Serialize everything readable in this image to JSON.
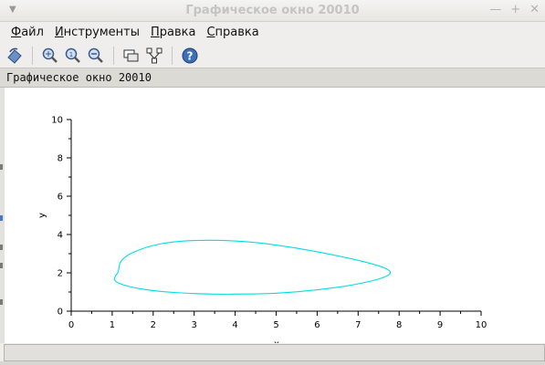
{
  "window": {
    "title": "Графическое окно 20010"
  },
  "menu": {
    "items": [
      {
        "first": "Ф",
        "rest": "айл"
      },
      {
        "first": "И",
        "rest": "нструменты"
      },
      {
        "first": "П",
        "rest": "равка"
      },
      {
        "first": "С",
        "rest": "правка"
      }
    ]
  },
  "toolbar": {
    "icons": [
      "rotate-icon",
      "zoom-area-icon",
      "zoom-reset-icon",
      "zoom-icon",
      "datatip-icon",
      "edit-tree-icon",
      "help-icon"
    ]
  },
  "figure": {
    "title": "Графическое окно 20010"
  },
  "chart_data": {
    "type": "line",
    "xlabel": "x",
    "ylabel": "y",
    "xlim": [
      0,
      10
    ],
    "ylim": [
      0,
      10
    ],
    "xticks": [
      "0",
      "1",
      "2",
      "3",
      "4",
      "5",
      "6",
      "7",
      "8",
      "9",
      "10"
    ],
    "yticks": [
      "0",
      "2",
      "4",
      "6",
      "8",
      "10"
    ],
    "grid": false,
    "series": [
      {
        "color": "#00e0e0",
        "x": [
          1.15,
          1.05,
          1.06,
          1.35,
          2.0,
          3.0,
          4.0,
          5.0,
          6.0,
          7.0,
          7.65,
          7.85,
          7.5,
          6.5,
          5.5,
          4.5,
          3.5,
          2.5,
          1.8,
          1.2,
          1.15
        ],
        "y": [
          2.05,
          1.75,
          1.55,
          1.3,
          1.05,
          0.9,
          0.88,
          0.92,
          1.1,
          1.4,
          1.75,
          2.05,
          2.4,
          2.9,
          3.3,
          3.6,
          3.72,
          3.65,
          3.35,
          2.75,
          2.05
        ]
      }
    ]
  }
}
